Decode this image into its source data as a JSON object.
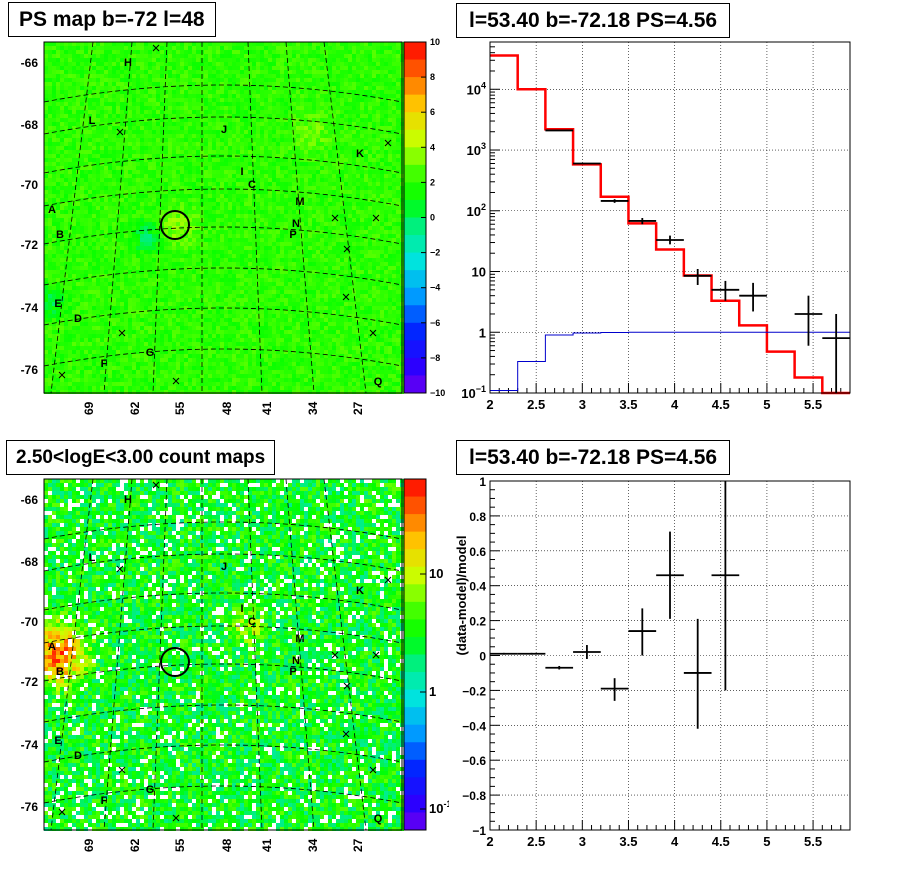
{
  "panels": {
    "tl": {
      "title": "PS map b=-72 l=48"
    },
    "tr": {
      "title": "l=53.40 b=-72.18 PS=4.56"
    },
    "bl": {
      "title": "2.50<logE<3.00 count maps"
    },
    "br": {
      "title": "l=53.40 b=-72.18 PS=4.56"
    }
  },
  "chart_data": [
    {
      "type": "heatmap",
      "title": "PS map b=-72 l=48",
      "xticks": [
        "69",
        "62",
        "55",
        "48",
        "41",
        "34",
        "27"
      ],
      "yticks": [
        "-66",
        "-68",
        "-70",
        "-72",
        "-74",
        "-76"
      ],
      "colorbar": {
        "ticks": [
          "10",
          "8",
          "6",
          "4",
          "2",
          "0",
          "−2",
          "−4",
          "−6",
          "−8",
          "−10"
        ],
        "range": [
          -10,
          10
        ],
        "scale": "linear"
      },
      "sources": [
        "H",
        "L",
        "J",
        "K",
        "I",
        "C",
        "A",
        "M",
        "N",
        "B",
        "P",
        "E",
        "D",
        "G",
        "F",
        "Q"
      ]
    },
    {
      "type": "line",
      "title": "l=53.40 b=-72.18 PS=4.56",
      "xlim": [
        2,
        5.9
      ],
      "ylim": [
        0.1,
        60000
      ],
      "yscale": "log",
      "xticks": [
        "2",
        "2.5",
        "3",
        "3.5",
        "4",
        "4.5",
        "5",
        "5.5"
      ],
      "yticks": [
        {
          "label": "10",
          "sup": "−1"
        },
        {
          "label": "1",
          "sup": ""
        },
        {
          "label": "10",
          "sup": ""
        },
        {
          "label": "10",
          "sup": "2"
        },
        {
          "label": "10",
          "sup": "3"
        },
        {
          "label": "10",
          "sup": "4"
        }
      ],
      "grid": true,
      "bin_edges": [
        2.0,
        2.3,
        2.6,
        2.9,
        3.2,
        3.5,
        3.8,
        4.1,
        4.4,
        4.7,
        5.0,
        5.3,
        5.6,
        5.9
      ],
      "model_red": [
        36000,
        10000,
        2200,
        580,
        170,
        62,
        23,
        8.6,
        3.3,
        1.3,
        0.48,
        0.18,
        0.07
      ],
      "model_blue": [
        0.11,
        0.33,
        0.9,
        0.97,
        0.99,
        1.0,
        1.0,
        1.0,
        1.0,
        1.0,
        1.0,
        1.0,
        1.0
      ],
      "data_points": [
        {
          "x": 2.75,
          "y": 2100,
          "xerr": 0.15,
          "ylo": 2100,
          "yhi": 2100
        },
        {
          "x": 3.05,
          "y": 600,
          "xerr": 0.15,
          "ylo": 600,
          "yhi": 600
        },
        {
          "x": 3.35,
          "y": 145,
          "xerr": 0.15,
          "ylo": 135,
          "yhi": 155
        },
        {
          "x": 3.65,
          "y": 68,
          "xerr": 0.15,
          "ylo": 60,
          "yhi": 76
        },
        {
          "x": 3.95,
          "y": 33,
          "xerr": 0.15,
          "ylo": 28,
          "yhi": 39
        },
        {
          "x": 4.25,
          "y": 8.5,
          "xerr": 0.15,
          "ylo": 6,
          "yhi": 11
        },
        {
          "x": 4.55,
          "y": 5,
          "xerr": 0.15,
          "ylo": 3.3,
          "yhi": 7
        },
        {
          "x": 4.85,
          "y": 4,
          "xerr": 0.15,
          "ylo": 2.2,
          "yhi": 6.5
        },
        {
          "x": 5.45,
          "y": 2,
          "xerr": 0.15,
          "ylo": 0.6,
          "yhi": 4
        },
        {
          "x": 5.75,
          "y": 0.8,
          "xerr": 0.15,
          "ylo": 0.1,
          "yhi": 2
        }
      ]
    },
    {
      "type": "heatmap",
      "title": "2.50<logE<3.00 count maps",
      "xticks": [
        "69",
        "62",
        "55",
        "48",
        "41",
        "34",
        "27"
      ],
      "yticks": [
        "-66",
        "-68",
        "-70",
        "-72",
        "-74",
        "-76"
      ],
      "colorbar": {
        "ticks": [
          {
            "label": "10",
            "sup": ""
          },
          {
            "label": "1",
            "sup": ""
          },
          {
            "label": "10",
            "sup": "-1"
          }
        ],
        "scale": "log"
      },
      "sources": [
        "H",
        "L",
        "J",
        "K",
        "I",
        "C",
        "A",
        "M",
        "N",
        "B",
        "P",
        "E",
        "D",
        "G",
        "F",
        "Q"
      ]
    },
    {
      "type": "scatter",
      "title": "l=53.40 b=-72.18 PS=4.56",
      "ylabel": "(data-model)/model",
      "xlim": [
        2,
        5.9
      ],
      "ylim": [
        -1,
        1
      ],
      "xticks": [
        "2",
        "2.5",
        "3",
        "3.5",
        "4",
        "4.5",
        "5",
        "5.5"
      ],
      "yticks": [
        "1",
        "0.8",
        "0.6",
        "0.4",
        "0.2",
        "0",
        "−0.2",
        "−0.4",
        "−0.6",
        "−0.8",
        "−1"
      ],
      "grid": true,
      "data_points": [
        {
          "x": 2.15,
          "y": 0.01,
          "xerr": 0.15,
          "ylo": 0.005,
          "yhi": 0.015
        },
        {
          "x": 2.45,
          "y": 0.01,
          "xerr": 0.15,
          "ylo": 0.005,
          "yhi": 0.015
        },
        {
          "x": 2.75,
          "y": -0.07,
          "xerr": 0.15,
          "ylo": -0.08,
          "yhi": -0.06
        },
        {
          "x": 3.05,
          "y": 0.02,
          "xerr": 0.15,
          "ylo": -0.02,
          "yhi": 0.06
        },
        {
          "x": 3.35,
          "y": -0.19,
          "xerr": 0.15,
          "ylo": -0.26,
          "yhi": -0.13
        },
        {
          "x": 3.65,
          "y": 0.14,
          "xerr": 0.15,
          "ylo": 0.0,
          "yhi": 0.27
        },
        {
          "x": 3.95,
          "y": 0.46,
          "xerr": 0.15,
          "ylo": 0.21,
          "yhi": 0.71
        },
        {
          "x": 4.25,
          "y": -0.1,
          "xerr": 0.15,
          "ylo": -0.42,
          "yhi": 0.21
        },
        {
          "x": 4.55,
          "y": 0.46,
          "xerr": 0.15,
          "ylo": -0.2,
          "yhi": 1.0
        }
      ]
    }
  ]
}
